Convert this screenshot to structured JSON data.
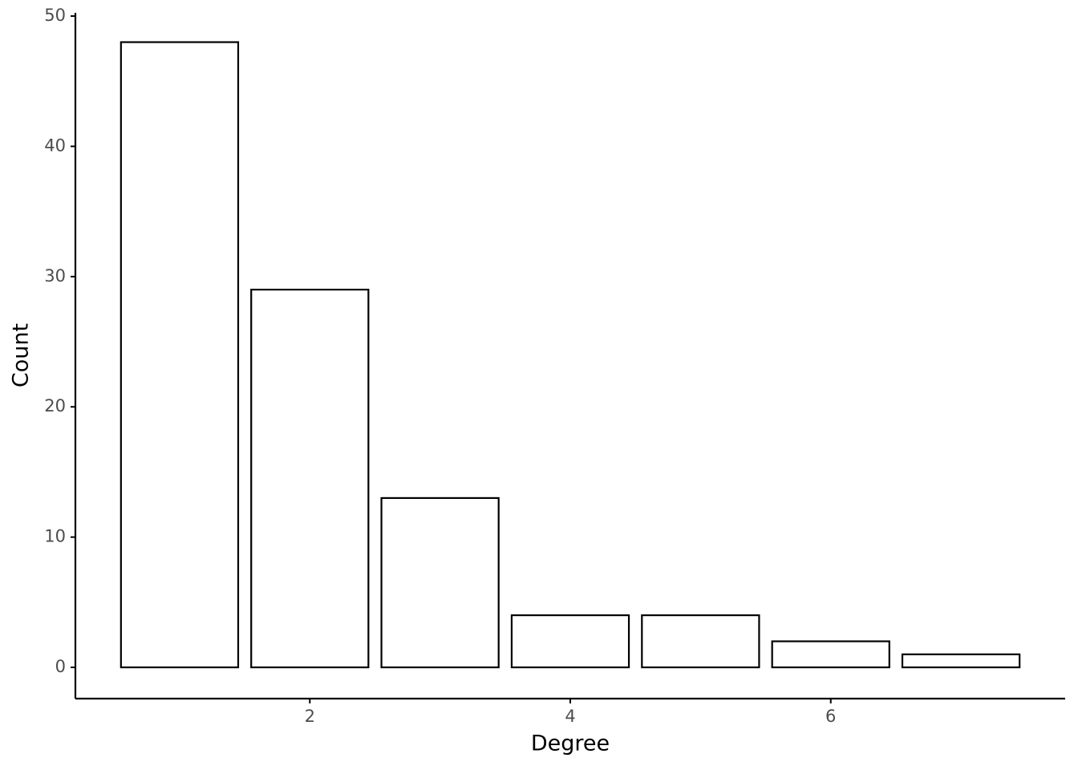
{
  "chart_data": {
    "type": "bar",
    "x_label": "Degree",
    "y_label": "Count",
    "x": [
      1,
      2,
      3,
      4,
      5,
      6,
      7
    ],
    "values": [
      48,
      29,
      13,
      4,
      4,
      2,
      1
    ],
    "color": "#ffffff",
    "edge_color": "#000000",
    "xlim": [
      0.2,
      7.8
    ],
    "xticks": [
      2,
      4,
      6
    ],
    "ylim": [
      -2.4,
      50.25
    ],
    "yticks": [
      0,
      10,
      20,
      30,
      40,
      50
    ],
    "grid": false
  }
}
